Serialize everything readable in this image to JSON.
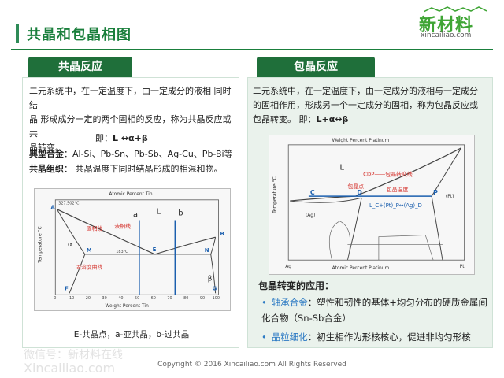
{
  "header": {
    "title": "共晶和包晶相图"
  },
  "logo": {
    "name": "新材料",
    "domain": "xincailiao.com"
  },
  "eutectic": {
    "tab": "共晶反应",
    "line1": "二元系统中，在一定温度下，由一定成分的液相 同时结",
    "line2": "晶 形成成分一定的两个固相的反应，称为共晶反应或共",
    "line3": "晶转变。",
    "formula_prefix": "即：",
    "formula": "L ↔α+β",
    "alloy_label": "典型合金",
    "alloy_text": "：Al-Si、Pb-Sn、Pb-Sb、Ag-Cu、Pb-Bi等",
    "structure_label": "共晶组织",
    "structure_text": "： 共晶温度下同时结晶形成的相混和物。",
    "diagram": {
      "top_axis": "Atomic Percent Tin",
      "bottom_axis": "Weight Percent Tin",
      "y_axis": "Temperature °C",
      "left_element": "Pb",
      "right_element": "Sn",
      "temp_top": "327.502°C",
      "eutectic_temp": "183°C",
      "liquidus_label": "液相线",
      "solidus_label": "固相线",
      "solvus_label": "固溶度曲线",
      "points": {
        "A": "A",
        "B": "B",
        "M": "M",
        "E": "E",
        "N": "N",
        "F": "F",
        "G": "G"
      },
      "region_L": "L",
      "region_a": "a",
      "region_b": "b",
      "alpha": "α",
      "beta": "β",
      "ticks_x": [
        "0",
        "10",
        "20",
        "30",
        "40",
        "50",
        "60",
        "70",
        "80",
        "90",
        "100"
      ]
    },
    "caption": "E-共晶点，a-亚共晶，b-过共晶"
  },
  "peritectic": {
    "tab": "包晶反应",
    "line1": "二元系统中，在一定温度下，由一定成分的液相与一定成分",
    "line2": "的固相作用，形成另一个一定成分的固相，称为包晶反应或",
    "line3": "包晶转变。",
    "formula_prefix": "即：",
    "formula": "L+α↔β",
    "diagram": {
      "top_axis": "Weight Percent Platinum",
      "bottom_axis": "Atomic Percent Platinum",
      "y_axis": "Temperature °C",
      "left_element": "Ag",
      "right_element": "Pt",
      "region_L": "L",
      "cdp_label": "CDP——包晶转变线",
      "peritectic_point": "包晶点",
      "peritectic_temp": "包晶温度",
      "reaction": "L_C+(Pt)_P↔(Ag)_D",
      "points": {
        "C": "C",
        "D": "D",
        "P": "P"
      },
      "pt_region": "(Pt)",
      "ag_region": "(Ag)"
    },
    "applications_title": "包晶转变的应用：",
    "app1_key": "轴承合金",
    "app1_text": "：塑性和韧性的基体+均匀分布的硬质金属间化合物（Sn-Sb合金）",
    "app2_key": "晶粒细化",
    "app2_text": "：初生相作为形核核心，促进非均匀形核"
  },
  "watermark": {
    "line1": "微信号：新材料在线",
    "line2": "Xincailiao.com"
  },
  "footer": {
    "copyright": "Copyright © 2016   Xincailiao.com   All Rights Reserved"
  }
}
